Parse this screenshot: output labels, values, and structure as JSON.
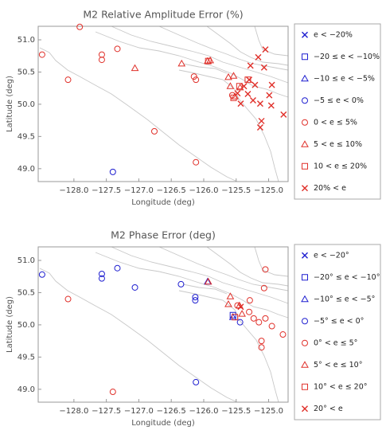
{
  "chart_data": [
    {
      "type": "scatter",
      "title": "M2 Relative Amplitude Error (%)",
      "x_label": "Longitude (deg)",
      "y_label": "Latitude (deg)",
      "xlim": [
        -128.55,
        -124.7
      ],
      "ylim": [
        48.8,
        51.21
      ],
      "xticks": [
        {
          "value": -128,
          "label": "−128.0"
        },
        {
          "value": -127.5,
          "label": "−127.5"
        },
        {
          "value": -127,
          "label": "−127.0"
        },
        {
          "value": -126.5,
          "label": "−126.5"
        },
        {
          "value": -126,
          "label": "−126.0"
        },
        {
          "value": -125.5,
          "label": "−125.5"
        },
        {
          "value": -125,
          "label": "−125.0"
        }
      ],
      "yticks": [
        {
          "value": 49,
          "label": "49.0"
        },
        {
          "value": 49.5,
          "label": "49.5"
        },
        {
          "value": 50,
          "label": "50.0"
        },
        {
          "value": 50.5,
          "label": "50.5"
        },
        {
          "value": 51,
          "label": "51.0"
        }
      ],
      "legend": "outside-right",
      "series": [
        {
          "name": "e < −20%",
          "color": "#1f1fd0",
          "marker": "x",
          "x": [],
          "y": []
        },
        {
          "name": "−20 ≤ e < −10%",
          "color": "#1f1fd0",
          "marker": "square",
          "x": [],
          "y": []
        },
        {
          "name": "−10 ≤ e < −5%",
          "color": "#1f1fd0",
          "marker": "triangle",
          "x": [],
          "y": []
        },
        {
          "name": "−5 ≤ e < 0%",
          "color": "#1f1fd0",
          "marker": "circle",
          "x": [
            -127.4
          ],
          "y": [
            48.95
          ]
        },
        {
          "name": "0 < e ≤ 5%",
          "color": "#e0302a",
          "marker": "circle",
          "x": [
            -128.49,
            -128.09,
            -127.91,
            -127.57,
            -127.57,
            -127.33,
            -126.76,
            -126.12,
            -126.15,
            -126.12,
            -125.56
          ],
          "y": [
            50.77,
            50.38,
            51.2,
            50.77,
            50.69,
            50.86,
            49.58,
            49.1,
            50.43,
            50.38,
            50.14
          ]
        },
        {
          "name": "5 < e ≤ 10%",
          "color": "#e0302a",
          "marker": "triangle",
          "x": [
            -127.06,
            -126.34,
            -125.94,
            -125.9,
            -125.62,
            -125.59,
            -125.54,
            -125.44,
            -125.52
          ],
          "y": [
            50.56,
            50.63,
            50.67,
            50.68,
            50.42,
            50.28,
            50.44,
            50.26,
            50.12
          ]
        },
        {
          "name": "10 < e ≤ 20%",
          "color": "#e0302a",
          "marker": "square",
          "x": [
            -125.93,
            -125.45,
            -125.32,
            -125.54
          ],
          "y": [
            50.67,
            50.28,
            50.38,
            50.1
          ]
        },
        {
          "name": "20% < e",
          "color": "#e0302a",
          "marker": "x",
          "x": [
            -125.05,
            -125.16,
            -125.28,
            -125.07,
            -125.3,
            -125.38,
            -125.21,
            -124.95,
            -125.48,
            -125.32,
            -125.24,
            -125.43,
            -124.99,
            -125.13,
            -124.96,
            -125.11,
            -125.13,
            -124.77
          ],
          "y": [
            50.85,
            50.73,
            50.6,
            50.57,
            50.38,
            50.28,
            50.3,
            50.3,
            50.17,
            50.16,
            50.06,
            50.01,
            50.14,
            50.01,
            49.98,
            49.74,
            49.64,
            49.84
          ]
        }
      ]
    },
    {
      "type": "scatter",
      "title": "M2 Phase Error (deg)",
      "x_label": "Longitude (deg)",
      "y_label": "Latitude (deg)",
      "xlim": [
        -128.55,
        -124.7
      ],
      "ylim": [
        48.8,
        51.21
      ],
      "xticks": [
        {
          "value": -128,
          "label": "−128.0"
        },
        {
          "value": -127.5,
          "label": "−127.5"
        },
        {
          "value": -127,
          "label": "−127.0"
        },
        {
          "value": -126.5,
          "label": "−126.5"
        },
        {
          "value": -126,
          "label": "−126.0"
        },
        {
          "value": -125.5,
          "label": "−125.5"
        },
        {
          "value": -125,
          "label": "−125.0"
        }
      ],
      "yticks": [
        {
          "value": 49,
          "label": "49.0"
        },
        {
          "value": 49.5,
          "label": "49.5"
        },
        {
          "value": 50,
          "label": "50.0"
        },
        {
          "value": 50.5,
          "label": "50.5"
        },
        {
          "value": 51,
          "label": "51.0"
        }
      ],
      "legend": "outside-right",
      "series": [
        {
          "name": "e < −20°",
          "color": "#1f1fd0",
          "marker": "x",
          "x": [],
          "y": []
        },
        {
          "name": "−20° ≤ e < −10°",
          "color": "#1f1fd0",
          "marker": "square",
          "x": [
            -125.55
          ],
          "y": [
            50.15
          ]
        },
        {
          "name": "−10° ≤ e < −5°",
          "color": "#1f1fd0",
          "marker": "triangle",
          "x": [
            -125.94,
            -125.55
          ],
          "y": [
            50.67,
            50.12
          ]
        },
        {
          "name": "−5° ≤ e < 0°",
          "color": "#1f1fd0",
          "marker": "circle",
          "x": [
            -128.49,
            -127.57,
            -127.57,
            -127.33,
            -127.06,
            -126.35,
            -126.13,
            -126.13,
            -126.12,
            -125.44
          ],
          "y": [
            50.78,
            50.79,
            50.72,
            50.88,
            50.58,
            50.63,
            50.43,
            50.38,
            49.11,
            50.04
          ]
        },
        {
          "name": "0° < e ≤ 5°",
          "color": "#e0302a",
          "marker": "circle",
          "x": [
            -128.09,
            -127.4,
            -125.05,
            -125.07,
            -125.29,
            -125.3,
            -125.23,
            -125.15,
            -125.05,
            -124.95,
            -125.11,
            -125.11,
            -124.78,
            -125.48
          ],
          "y": [
            50.4,
            48.96,
            50.86,
            50.57,
            50.38,
            50.2,
            50.1,
            50.04,
            50.1,
            49.98,
            49.75,
            49.65,
            49.85,
            50.3
          ]
        },
        {
          "name": "5° < e ≤ 10°",
          "color": "#e0302a",
          "marker": "triangle",
          "x": [
            -125.93,
            -125.59,
            -125.62,
            -125.45,
            -125.41
          ],
          "y": [
            50.67,
            50.44,
            50.32,
            50.3,
            50.17
          ]
        },
        {
          "name": "10° < e ≤ 20°",
          "color": "#e0302a",
          "marker": "square",
          "x": [
            -125.52
          ],
          "y": [
            50.12
          ]
        },
        {
          "name": "20° < e",
          "color": "#e0302a",
          "marker": "x",
          "x": [
            -125.43
          ],
          "y": [
            50.28
          ]
        }
      ]
    }
  ]
}
